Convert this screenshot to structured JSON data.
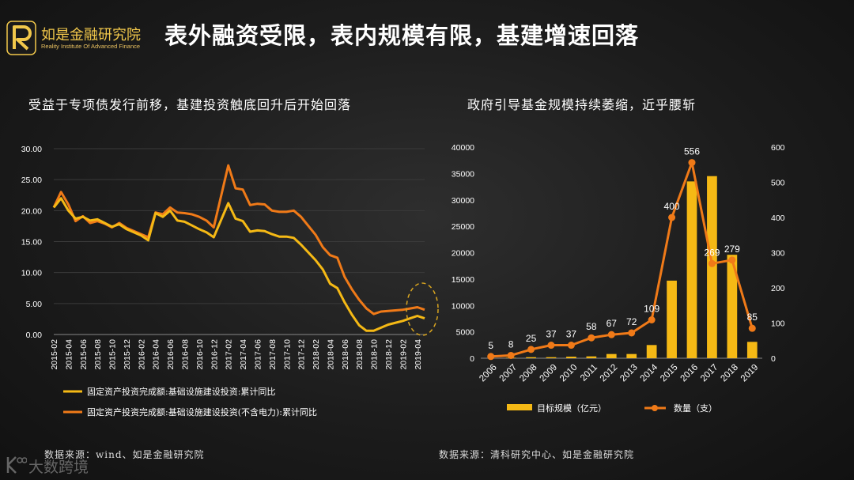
{
  "header": {
    "logo_name": "如是金融研究院",
    "logo_subtitle": "Reality Institute Of Advanced Finance",
    "title": "表外融资受限，表内规模有限，基建增速回落"
  },
  "left_panel": {
    "title": "受益于专项债发行前移，基建投资触底回升后开始回落",
    "source": "数据来源：wind、如是金融研究院"
  },
  "right_panel": {
    "title": "政府引导基金规模持续萎缩，近乎腰斩",
    "source": "数据来源：清科研究中心、如是金融研究院"
  },
  "watermark": {
    "text": "大数跨境"
  },
  "colors": {
    "yellow": "#f5b915",
    "orange": "#f07a18",
    "background": "#1e1e1e"
  },
  "chart_data": [
    {
      "type": "line",
      "ylim": [
        0,
        30
      ],
      "yticks": [
        "0.00",
        "5.00",
        "10.00",
        "15.00",
        "20.00",
        "25.00",
        "30.00"
      ],
      "x_tick_labels": [
        "2015-02",
        "2015-04",
        "2015-06",
        "2015-08",
        "2015-10",
        "2015-12",
        "2016-02",
        "2016-04",
        "2016-06",
        "2016-08",
        "2016-10",
        "2016-12",
        "2017-02",
        "2017-04",
        "2017-06",
        "2017-08",
        "2017-10",
        "2017-12",
        "2018-02",
        "2018-04",
        "2018-06",
        "2018-08",
        "2018-10",
        "2018-12",
        "2019-02",
        "2019-04"
      ],
      "x": [
        "2015-02",
        "2015-03",
        "2015-04",
        "2015-05",
        "2015-06",
        "2015-07",
        "2015-08",
        "2015-09",
        "2015-10",
        "2015-11",
        "2015-12",
        "2016-02",
        "2016-03",
        "2016-04",
        "2016-05",
        "2016-06",
        "2016-07",
        "2016-08",
        "2016-09",
        "2016-10",
        "2016-11",
        "2016-12",
        "2017-02",
        "2017-03",
        "2017-04",
        "2017-05",
        "2017-06",
        "2017-07",
        "2017-08",
        "2017-09",
        "2017-10",
        "2017-11",
        "2017-12",
        "2018-02",
        "2018-03",
        "2018-04",
        "2018-05",
        "2018-06",
        "2018-07",
        "2018-08",
        "2018-09",
        "2018-10",
        "2018-11",
        "2018-12",
        "2019-02",
        "2019-03",
        "2019-04",
        "2019-05"
      ],
      "series": [
        {
          "name": "固定资产投资完成额:基础设施建设投资:累计同比",
          "color": "#f5b915",
          "values": [
            20.5,
            22.0,
            20.0,
            18.7,
            19.0,
            18.4,
            18.6,
            18.0,
            17.4,
            17.8,
            17.0,
            16.0,
            15.2,
            19.6,
            19.0,
            20.0,
            18.4,
            18.2,
            17.6,
            17.0,
            16.5,
            15.7,
            21.2,
            18.7,
            18.3,
            16.6,
            16.8,
            16.7,
            16.2,
            15.8,
            15.8,
            15.6,
            14.5,
            12.0,
            10.5,
            8.2,
            7.5,
            5.2,
            3.2,
            1.5,
            0.6,
            0.6,
            1.1,
            1.6,
            2.2,
            2.6,
            3.0,
            2.6
          ]
        },
        {
          "name": "固定资产投资完成额:基础设施建设投资(不含电力):累计同比",
          "color": "#f07a18",
          "values": [
            20.5,
            23.0,
            21.0,
            18.3,
            19.1,
            18.0,
            18.3,
            17.9,
            17.3,
            18.0,
            17.2,
            16.2,
            15.7,
            19.7,
            19.4,
            20.5,
            19.7,
            19.6,
            19.4,
            19.0,
            18.4,
            17.3,
            27.3,
            23.6,
            23.4,
            20.9,
            21.1,
            21.0,
            20.0,
            19.8,
            19.8,
            20.0,
            19.0,
            16.1,
            14.1,
            12.8,
            12.4,
            9.3,
            7.3,
            5.6,
            4.2,
            3.3,
            3.7,
            3.8,
            4.0,
            4.2,
            4.4,
            4.0
          ]
        }
      ]
    },
    {
      "type": "bar",
      "categories": [
        "2006",
        "2007",
        "2008",
        "2009",
        "2010",
        "2011",
        "2012",
        "2013",
        "2014",
        "2015",
        "2016",
        "2017",
        "2018",
        "2019"
      ],
      "y_left_lim": [
        0,
        40000
      ],
      "y_left_ticks": [
        "0",
        "5000",
        "10000",
        "15000",
        "20000",
        "25000",
        "30000",
        "35000",
        "40000"
      ],
      "y_right_lim": [
        0,
        600
      ],
      "y_right_ticks": [
        "0",
        "100",
        "200",
        "300",
        "400",
        "500",
        "600"
      ],
      "series": [
        {
          "name": "目标规模（亿元）",
          "type": "bar",
          "axis": "left",
          "color": "#f5b915",
          "values": [
            0,
            100,
            200,
            200,
            300,
            350,
            800,
            800,
            2500,
            14700,
            33500,
            34500,
            19600,
            3100
          ]
        },
        {
          "name": "数量（支）",
          "type": "line",
          "axis": "right",
          "color": "#f07a18",
          "values": [
            5,
            8,
            25,
            37,
            37,
            58,
            67,
            72,
            109,
            400,
            556,
            269,
            279,
            85
          ],
          "labels": [
            "5",
            "8",
            "25",
            "37",
            "37",
            "58",
            "67",
            "72",
            "109",
            "400",
            "556",
            "269",
            "279",
            "85"
          ]
        }
      ]
    }
  ]
}
